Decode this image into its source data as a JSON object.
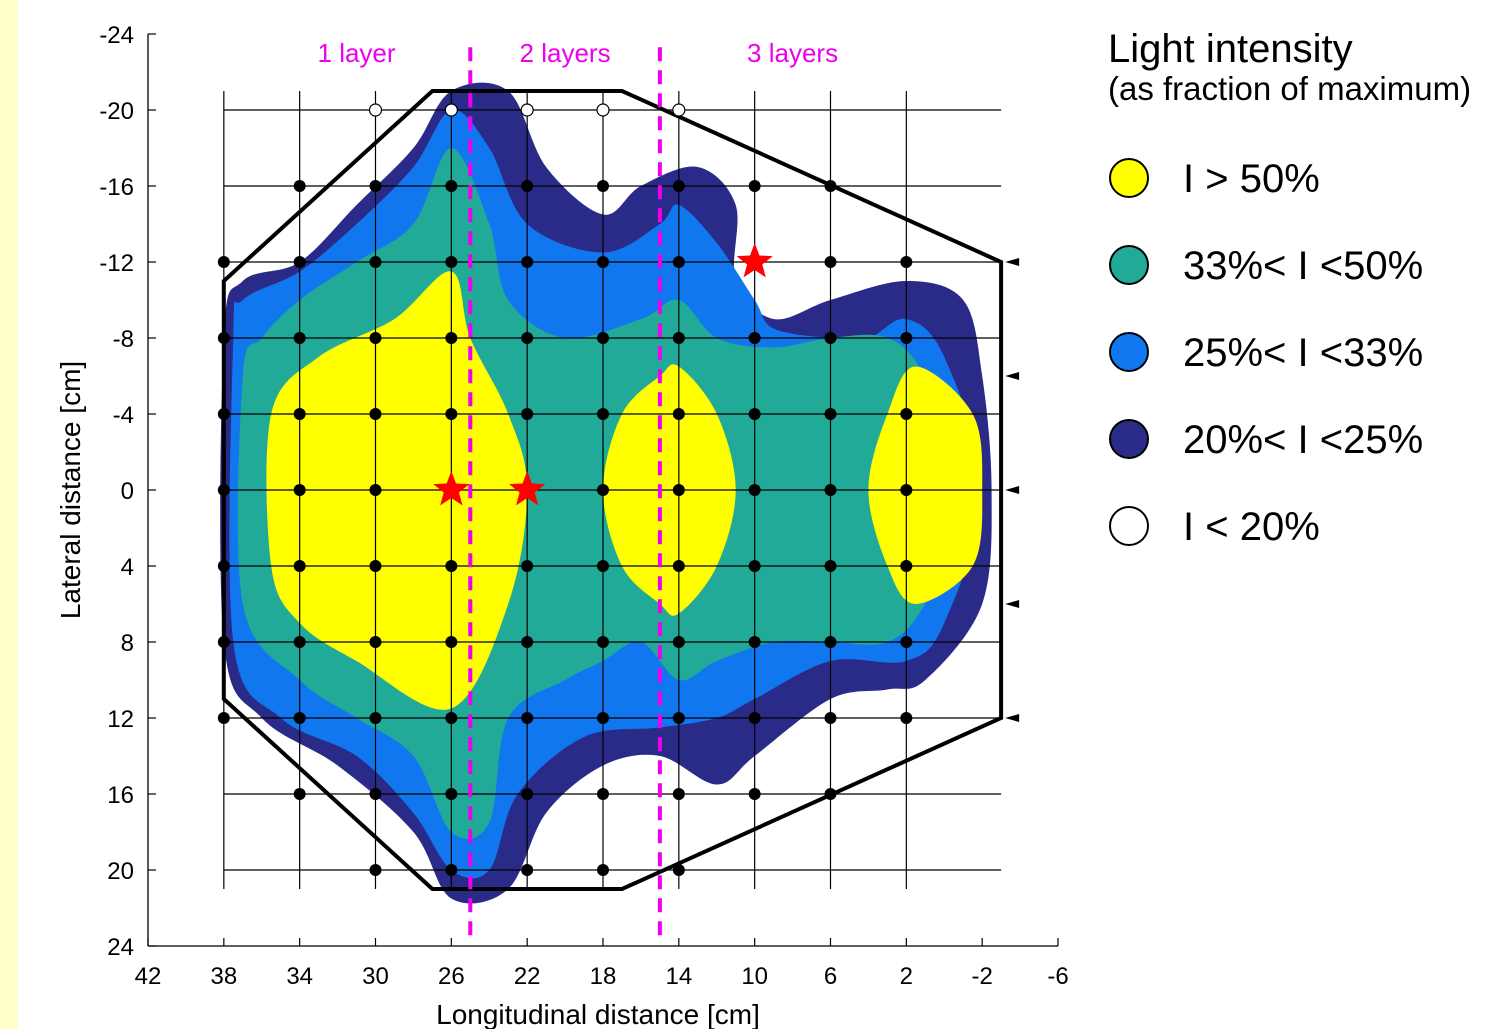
{
  "chart_data": {
    "type": "heatmap",
    "title": "",
    "xlabel": "Longitudinal distance [cm]",
    "ylabel": "Lateral distance [cm]",
    "xlim": [
      42,
      -6
    ],
    "ylim": [
      -24,
      24
    ],
    "y_axis_inverted": true,
    "x_ticks": [
      42,
      38,
      34,
      30,
      26,
      22,
      18,
      14,
      10,
      6,
      2,
      -2,
      -6
    ],
    "y_ticks": [
      -24,
      -20,
      -16,
      -12,
      -8,
      -4,
      0,
      4,
      8,
      12,
      16,
      20,
      24
    ],
    "grid": true,
    "legend_placement": "right",
    "legend": {
      "title": "Light intensity",
      "subtitle": "(as fraction of maximum)",
      "entries": [
        {
          "label": "I > 50%",
          "color": "#ffff00"
        },
        {
          "label": "33%< I <50%",
          "color": "#22aa99"
        },
        {
          "label": "25%< I <33%",
          "color": "#1177ee"
        },
        {
          "label": "20%< I <25%",
          "color": "#2a2a88"
        },
        {
          "label": "I < 20%",
          "color": "#ffffff"
        }
      ]
    },
    "layer_labels": [
      {
        "text": "1 layer",
        "x": 31
      },
      {
        "text": "2 layers",
        "x": 20
      },
      {
        "text": "3 layers",
        "x": 8
      }
    ],
    "layer_boundaries_x": [
      25,
      15
    ],
    "boundary_polygon": [
      [
        27,
        -21
      ],
      [
        17,
        -21
      ],
      [
        -3,
        -12
      ],
      [
        -3,
        12
      ],
      [
        17,
        21
      ],
      [
        27,
        21
      ],
      [
        38,
        11
      ],
      [
        38,
        -11
      ]
    ],
    "grid_lines_x": [
      38,
      34,
      30,
      26,
      22,
      18,
      14,
      10,
      6,
      2
    ],
    "grid_lines_y": [
      -20,
      -16,
      -12,
      -8,
      -4,
      0,
      4,
      8,
      12,
      16,
      20
    ],
    "contours": {
      "dark": [
        [
          38,
          -8
        ],
        [
          38,
          8
        ],
        [
          36,
          12
        ],
        [
          32,
          14.5
        ],
        [
          28,
          18
        ],
        [
          26,
          21.5
        ],
        [
          23,
          21
        ],
        [
          21,
          17
        ],
        [
          18,
          14.5
        ],
        [
          15,
          14
        ],
        [
          12,
          15.5
        ],
        [
          10,
          14
        ],
        [
          6,
          11
        ],
        [
          3,
          10.5
        ],
        [
          1,
          10
        ],
        [
          -2,
          6
        ],
        [
          -2.5,
          0
        ],
        [
          -2,
          -6
        ],
        [
          -1,
          -10
        ],
        [
          2,
          -11
        ],
        [
          6,
          -10
        ],
        [
          9,
          -9
        ],
        [
          11,
          -11
        ],
        [
          11,
          -15
        ],
        [
          13,
          -17
        ],
        [
          16,
          -16
        ],
        [
          18,
          -14.5
        ],
        [
          21,
          -17
        ],
        [
          23,
          -21
        ],
        [
          26,
          -21
        ],
        [
          28,
          -18
        ],
        [
          31,
          -15
        ],
        [
          34,
          -12
        ],
        [
          37,
          -11
        ]
      ],
      "blue": [
        [
          37.5,
          -8
        ],
        [
          37.5,
          8
        ],
        [
          35,
          12
        ],
        [
          31,
          14
        ],
        [
          28,
          17
        ],
        [
          26,
          20
        ],
        [
          24,
          20
        ],
        [
          22.5,
          16
        ],
        [
          19,
          13
        ],
        [
          15,
          12.5
        ],
        [
          12,
          12
        ],
        [
          10,
          11
        ],
        [
          6,
          9
        ],
        [
          2,
          9
        ],
        [
          0,
          7
        ],
        [
          -2,
          0
        ],
        [
          0,
          -7
        ],
        [
          2,
          -9
        ],
        [
          4,
          -8
        ],
        [
          6,
          -8
        ],
        [
          9,
          -8.5
        ],
        [
          10,
          -10
        ],
        [
          12,
          -13
        ],
        [
          14,
          -15
        ],
        [
          15,
          -14
        ],
        [
          18,
          -12.5
        ],
        [
          22,
          -14
        ],
        [
          24,
          -18
        ],
        [
          26,
          -20
        ],
        [
          28,
          -17
        ],
        [
          31,
          -14
        ],
        [
          34,
          -11.5
        ],
        [
          37,
          -10
        ]
      ],
      "teal": [
        [
          37,
          -6
        ],
        [
          37,
          6
        ],
        [
          34,
          10
        ],
        [
          31,
          12
        ],
        [
          28,
          14
        ],
        [
          26,
          18
        ],
        [
          24,
          17.5
        ],
        [
          23,
          12
        ],
        [
          20,
          10
        ],
        [
          18,
          9
        ],
        [
          16,
          8
        ],
        [
          14,
          10
        ],
        [
          12,
          9
        ],
        [
          9,
          8
        ],
        [
          6,
          8
        ],
        [
          3,
          8
        ],
        [
          1,
          6
        ],
        [
          -2,
          0
        ],
        [
          1,
          -6
        ],
        [
          3,
          -8
        ],
        [
          6,
          -8
        ],
        [
          9,
          -7.5
        ],
        [
          12,
          -8
        ],
        [
          14,
          -10
        ],
        [
          16,
          -9
        ],
        [
          20,
          -8
        ],
        [
          23,
          -10
        ],
        [
          24,
          -14
        ],
        [
          26,
          -18
        ],
        [
          28,
          -14
        ],
        [
          31,
          -12
        ],
        [
          34,
          -10
        ],
        [
          36,
          -8
        ]
      ],
      "yellow_left": [
        [
          35.5,
          -4
        ],
        [
          35.5,
          4
        ],
        [
          34,
          7
        ],
        [
          31,
          9
        ],
        [
          26,
          11.5
        ],
        [
          23,
          6
        ],
        [
          22,
          0
        ],
        [
          23,
          -4
        ],
        [
          25,
          -8
        ],
        [
          26,
          -11.5
        ],
        [
          29,
          -9
        ],
        [
          33,
          -7
        ]
      ],
      "yellow_mid": [
        [
          18,
          0
        ],
        [
          17,
          -4
        ],
        [
          15,
          -6
        ],
        [
          14,
          -6.5
        ],
        [
          12,
          -4
        ],
        [
          11,
          0
        ],
        [
          12,
          4
        ],
        [
          14,
          6.5
        ],
        [
          15,
          6
        ],
        [
          17,
          4
        ]
      ],
      "yellow_right": [
        [
          4,
          0
        ],
        [
          3,
          -4
        ],
        [
          1.5,
          -6.5
        ],
        [
          -1.5,
          -4
        ],
        [
          -2,
          0
        ],
        [
          -1.5,
          4
        ],
        [
          1.5,
          6
        ],
        [
          3,
          4
        ]
      ]
    },
    "filled_points": [
      [
        26,
        -20
      ],
      [
        34,
        -16
      ],
      [
        30,
        -16
      ],
      [
        26,
        -16
      ],
      [
        22,
        -16
      ],
      [
        18,
        -16
      ],
      [
        14,
        -16
      ],
      [
        10,
        -16
      ],
      [
        6,
        -16
      ],
      [
        38,
        -12
      ],
      [
        34,
        -12
      ],
      [
        30,
        -12
      ],
      [
        26,
        -12
      ],
      [
        22,
        -12
      ],
      [
        18,
        -12
      ],
      [
        14,
        -12
      ],
      [
        10,
        -12
      ],
      [
        6,
        -12
      ],
      [
        2,
        -12
      ],
      [
        38,
        -8
      ],
      [
        34,
        -8
      ],
      [
        30,
        -8
      ],
      [
        26,
        -8
      ],
      [
        22,
        -8
      ],
      [
        18,
        -8
      ],
      [
        14,
        -8
      ],
      [
        10,
        -8
      ],
      [
        6,
        -8
      ],
      [
        2,
        -8
      ],
      [
        38,
        -4
      ],
      [
        34,
        -4
      ],
      [
        30,
        -4
      ],
      [
        26,
        -4
      ],
      [
        22,
        -4
      ],
      [
        18,
        -4
      ],
      [
        14,
        -4
      ],
      [
        10,
        -4
      ],
      [
        6,
        -4
      ],
      [
        2,
        -4
      ],
      [
        38,
        0
      ],
      [
        34,
        0
      ],
      [
        30,
        0
      ],
      [
        26,
        0
      ],
      [
        22,
        0
      ],
      [
        18,
        0
      ],
      [
        14,
        0
      ],
      [
        10,
        0
      ],
      [
        6,
        0
      ],
      [
        2,
        0
      ],
      [
        38,
        4
      ],
      [
        34,
        4
      ],
      [
        30,
        4
      ],
      [
        26,
        4
      ],
      [
        22,
        4
      ],
      [
        18,
        4
      ],
      [
        14,
        4
      ],
      [
        10,
        4
      ],
      [
        6,
        4
      ],
      [
        2,
        4
      ],
      [
        38,
        8
      ],
      [
        34,
        8
      ],
      [
        30,
        8
      ],
      [
        26,
        8
      ],
      [
        22,
        8
      ],
      [
        18,
        8
      ],
      [
        14,
        8
      ],
      [
        10,
        8
      ],
      [
        6,
        8
      ],
      [
        2,
        8
      ],
      [
        38,
        12
      ],
      [
        34,
        12
      ],
      [
        30,
        12
      ],
      [
        26,
        12
      ],
      [
        22,
        12
      ],
      [
        18,
        12
      ],
      [
        14,
        12
      ],
      [
        10,
        12
      ],
      [
        6,
        12
      ],
      [
        2,
        12
      ],
      [
        34,
        16
      ],
      [
        30,
        16
      ],
      [
        26,
        16
      ],
      [
        22,
        16
      ],
      [
        18,
        16
      ],
      [
        14,
        16
      ],
      [
        10,
        16
      ],
      [
        6,
        16
      ],
      [
        30,
        20
      ],
      [
        26,
        20
      ],
      [
        22,
        20
      ],
      [
        18,
        20
      ],
      [
        14,
        20
      ]
    ],
    "open_points": [
      [
        30,
        -20
      ],
      [
        26,
        -20
      ],
      [
        22,
        -20
      ],
      [
        18,
        -20
      ],
      [
        14,
        -20
      ]
    ],
    "stars": [
      [
        26,
        0
      ],
      [
        22,
        0
      ],
      [
        10,
        -12
      ]
    ],
    "arrows_y": [
      -12,
      -6,
      0,
      6,
      12
    ]
  },
  "colors": {
    "yellow": "#ffff00",
    "teal": "#22aa99",
    "blue": "#1177ee",
    "dark": "#2a2a88",
    "magenta": "#ee00ee",
    "star": "#ff0000",
    "border": "#ffffcc"
  }
}
